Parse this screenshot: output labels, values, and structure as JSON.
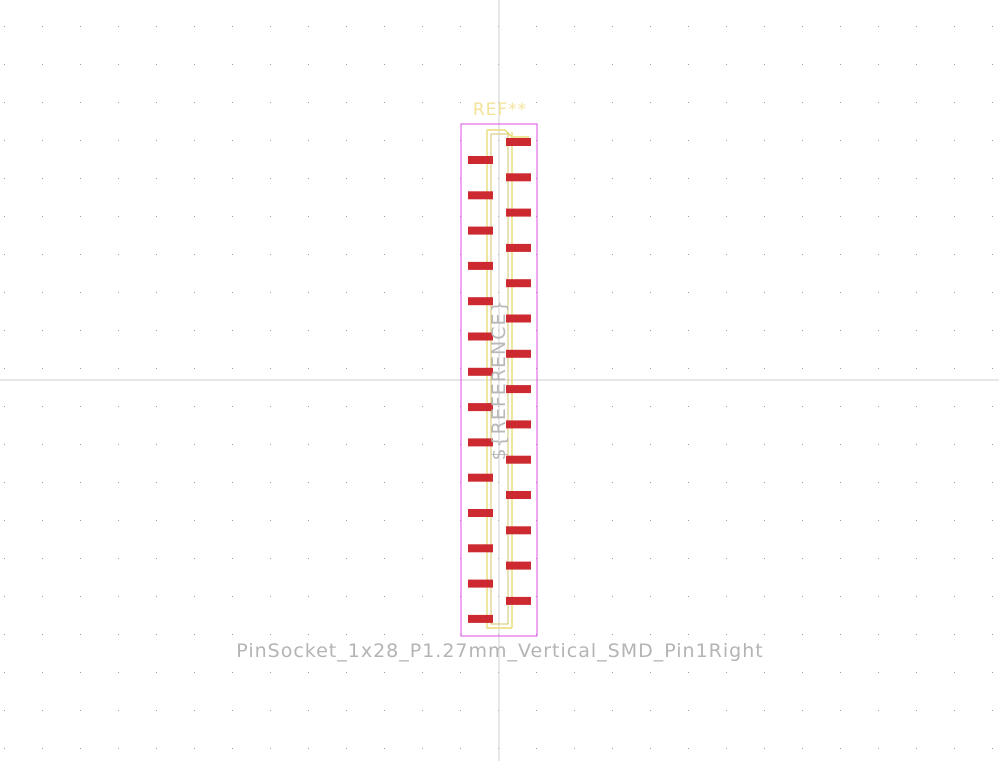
{
  "footprint": {
    "reference": "REF**",
    "value": "PinSocket_1x28_P1.27mm_Vertical_SMD_Pin1Right",
    "reference_variable": "${REFERENCE}",
    "pad_count": 28,
    "pitch_mm": 1.27,
    "pin1_side": "right"
  },
  "colors": {
    "background": "#ffffff",
    "grid_dot": "#9a9a9a",
    "crosshair": "#d0d0d0",
    "courtyard": "#e14fe6",
    "silkscreen": "#e8dc78",
    "fab_outline": "#d2c46a",
    "pad": "#cc2a30",
    "reference_text": "#f3e49a",
    "value_text": "#b4b4b4"
  }
}
